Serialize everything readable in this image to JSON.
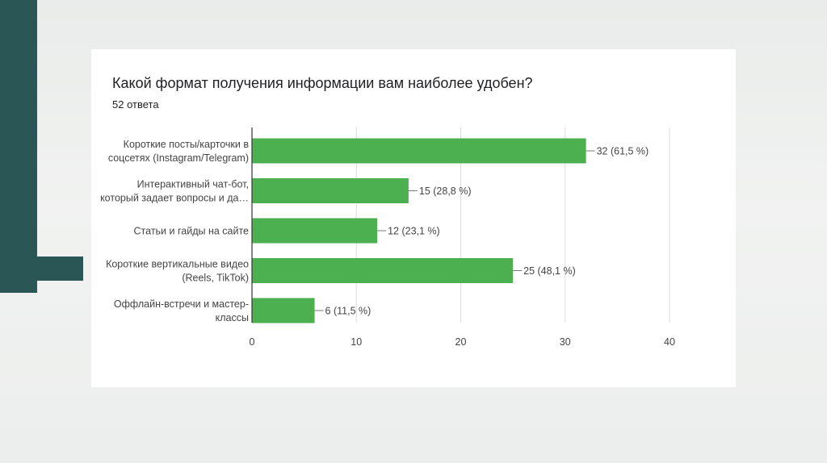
{
  "title": "Какой формат получения информации вам наиболее удобен?",
  "subtitle": "52 ответа",
  "colors": {
    "bar": "#4caf50",
    "accent": "#2a5756",
    "grid": "#dcdcdc"
  },
  "chart_data": {
    "type": "bar",
    "orientation": "horizontal",
    "title": "Какой формат получения информации вам наиболее удобен?",
    "subtitle": "52 ответа",
    "categories": [
      [
        "Короткие посты/карточки в",
        "соцсетях (Instagram/Telegram)"
      ],
      [
        "Интерактивный чат-бот,",
        "который задает вопросы и да…"
      ],
      [
        "Статьи и гайды на сайте"
      ],
      [
        "Короткие вертикальные видео",
        "(Reels, TikTok)"
      ],
      [
        "Оффлайн-встречи и мастер-",
        "классы"
      ]
    ],
    "values": [
      32,
      15,
      12,
      25,
      6
    ],
    "value_labels": [
      "32 (61,5 %)",
      "15 (28,8 %)",
      "12 (23,1 %)",
      "25 (48,1 %)",
      "6 (11,5 %)"
    ],
    "xlim": [
      0,
      40
    ],
    "xticks": [
      0,
      10,
      20,
      30,
      40
    ],
    "grid": true,
    "xlabel": "",
    "ylabel": ""
  }
}
